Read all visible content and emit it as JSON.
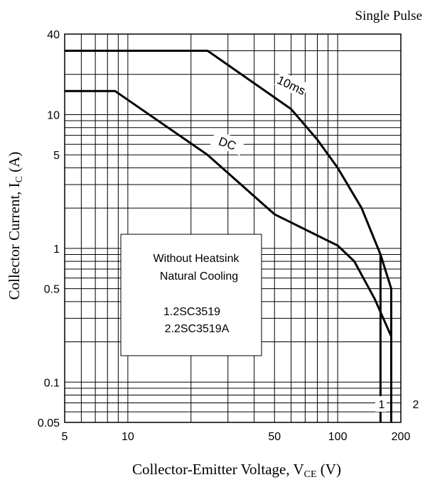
{
  "chart_data": {
    "type": "line",
    "title": "Single Pulse",
    "xlabel": "Collector-Emitter Voltage, V",
    "xlabel_sub": "CE",
    "xlabel_unit": " (V)",
    "ylabel": "Collector Current, I",
    "ylabel_sub": "C",
    "ylabel_unit": " (A)",
    "x_scale": "log",
    "y_scale": "log",
    "xlim": [
      5,
      200
    ],
    "ylim": [
      0.05,
      40
    ],
    "grid": true,
    "x_ticks": [
      {
        "value": 5,
        "label": "5"
      },
      {
        "value": 10,
        "label": "10"
      },
      {
        "value": 50,
        "label": "50"
      },
      {
        "value": 100,
        "label": "100"
      },
      {
        "value": 200,
        "label": "200"
      }
    ],
    "y_ticks": [
      {
        "value": 0.05,
        "label": "0.05"
      },
      {
        "value": 0.1,
        "label": "0.1"
      },
      {
        "value": 0.5,
        "label": "0.5"
      },
      {
        "value": 1,
        "label": "1"
      },
      {
        "value": 5,
        "label": "5"
      },
      {
        "value": 10,
        "label": "10"
      },
      {
        "value": 40,
        "label": "40"
      }
    ],
    "series": [
      {
        "name": "10ms",
        "points": [
          [
            5,
            30
          ],
          [
            24,
            30
          ],
          [
            60,
            11
          ],
          [
            80,
            6.5
          ],
          [
            100,
            4
          ],
          [
            130,
            2
          ],
          [
            160,
            0.9
          ],
          [
            180,
            0.5
          ],
          [
            180,
            0.05
          ]
        ]
      },
      {
        "name": "DC",
        "points": [
          [
            5,
            15
          ],
          [
            8.7,
            15
          ],
          [
            24,
            5
          ],
          [
            50,
            1.8
          ],
          [
            100,
            1.05
          ],
          [
            120,
            0.8
          ],
          [
            150,
            0.42
          ],
          [
            180,
            0.22
          ],
          [
            180,
            0.05
          ]
        ]
      },
      {
        "name": "1",
        "points": [
          [
            160,
            0.9
          ],
          [
            160,
            0.05
          ]
        ]
      }
    ],
    "annotations": {
      "box_line1": "Without Heatsink",
      "box_line2": "Natural Cooling",
      "box_line3": "1.2SC3519",
      "box_line4": "2.2SC3519A",
      "curve_label_1": "1",
      "curve_label_2": "2"
    }
  }
}
